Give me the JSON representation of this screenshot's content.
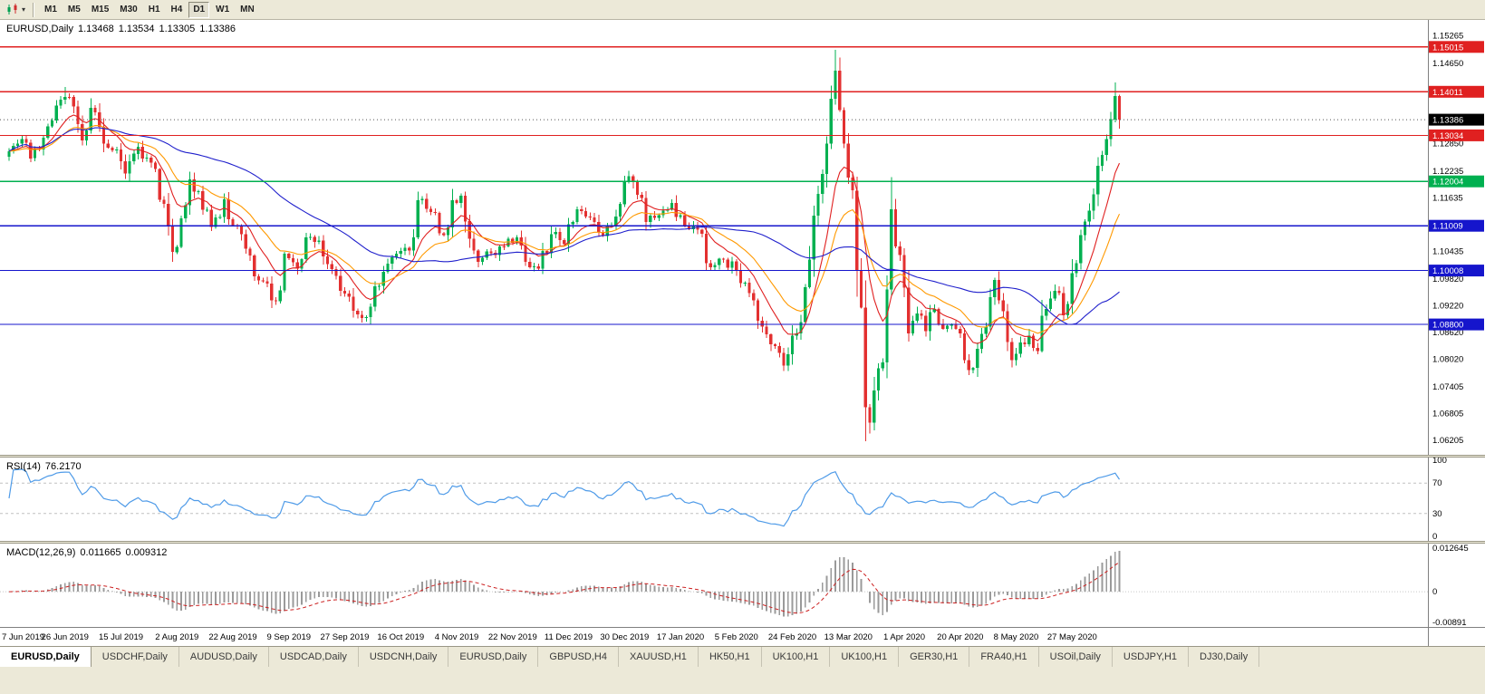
{
  "colors": {
    "up": "#00b050",
    "down": "#e33030",
    "macd_hist": "#9a9a9a",
    "macd_signal": "#cc2020",
    "badge_current": "#000000",
    "toolbar_bg": "#ece9d8",
    "panel_bg": "#ffffff"
  },
  "toolbar": {
    "dropdown_glyph": "▾",
    "timeframes": [
      {
        "label": "M1",
        "active": false
      },
      {
        "label": "M5",
        "active": false
      },
      {
        "label": "M15",
        "active": false
      },
      {
        "label": "M30",
        "active": false
      },
      {
        "label": "H1",
        "active": false
      },
      {
        "label": "H4",
        "active": false
      },
      {
        "label": "D1",
        "active": true
      },
      {
        "label": "W1",
        "active": false
      },
      {
        "label": "MN",
        "active": false
      }
    ]
  },
  "chart_data": {
    "type": "candlestick",
    "title": "EURUSD,Daily",
    "main": {
      "symbol": "EURUSD,Daily",
      "ohlc": {
        "open": "1.13468",
        "high": "1.13534",
        "low": "1.13305",
        "close": "1.13386"
      },
      "y_ticks": [
        "1.15265",
        "1.14650",
        "1.14040",
        "1.13425",
        "1.12850",
        "1.12235",
        "1.11635",
        "1.11025",
        "1.10435",
        "1.09820",
        "1.09220",
        "1.08620",
        "1.08020",
        "1.07405",
        "1.06805",
        "1.06205"
      ],
      "price_range": {
        "top": 1.1562,
        "bottom": 1.0588
      },
      "hlines": [
        {
          "price": 1.15015,
          "label": "1.15015",
          "color": "#e02020"
        },
        {
          "price": 1.14011,
          "label": "1.14011",
          "color": "#e02020"
        },
        {
          "price": 1.13034,
          "label": "1.13034",
          "color": "#e02020"
        },
        {
          "price": 1.12004,
          "label": "1.12004",
          "color": "#00b050"
        },
        {
          "price": 1.11009,
          "label": "1.11009",
          "color": "#1515cc"
        },
        {
          "price": 1.10008,
          "label": "1.10008",
          "color": "#1515cc"
        },
        {
          "price": 1.088,
          "label": "1.08800",
          "color": "#1515cc"
        }
      ],
      "current_price": {
        "value": 1.13386,
        "label": "1.13386"
      },
      "num_candles": 259,
      "seed": 42,
      "anchors": [
        [
          0,
          1.1268
        ],
        [
          3,
          1.1295
        ],
        [
          5,
          1.1252
        ],
        [
          8,
          1.1298
        ],
        [
          11,
          1.137
        ],
        [
          13,
          1.139
        ],
        [
          15,
          1.1368
        ],
        [
          17,
          1.1292
        ],
        [
          19,
          1.1365
        ],
        [
          22,
          1.1285
        ],
        [
          25,
          1.1272
        ],
        [
          27,
          1.1218
        ],
        [
          30,
          1.1278
        ],
        [
          33,
          1.1242
        ],
        [
          36,
          1.115
        ],
        [
          38,
          1.1042
        ],
        [
          40,
          1.1118
        ],
        [
          42,
          1.1205
        ],
        [
          44,
          1.1178
        ],
        [
          47,
          1.1098
        ],
        [
          50,
          1.116
        ],
        [
          52,
          1.1102
        ],
        [
          54,
          1.1082
        ],
        [
          57,
          1.0988
        ],
        [
          60,
          1.0972
        ],
        [
          62,
          1.0932
        ],
        [
          64,
          1.1038
        ],
        [
          67,
          1.1005
        ],
        [
          69,
          1.1075
        ],
        [
          72,
          1.1068
        ],
        [
          74,
          1.1015
        ],
        [
          77,
          1.0955
        ],
        [
          79,
          1.0942
        ],
        [
          81,
          1.0902
        ],
        [
          83,
          1.0896
        ],
        [
          85,
          1.0965
        ],
        [
          87,
          1.0998
        ],
        [
          90,
          1.1038
        ],
        [
          93,
          1.1045
        ],
        [
          95,
          1.1158
        ],
        [
          98,
          1.1132
        ],
        [
          101,
          1.108
        ],
        [
          103,
          1.1158
        ],
        [
          105,
          1.1168
        ],
        [
          107,
          1.1072
        ],
        [
          109,
          1.102
        ],
        [
          112,
          1.104
        ],
        [
          115,
          1.1055
        ],
        [
          118,
          1.1075
        ],
        [
          120,
          1.102
        ],
        [
          123,
          1.1005
        ],
        [
          126,
          1.1082
        ],
        [
          129,
          1.106
        ],
        [
          132,
          1.1138
        ],
        [
          135,
          1.112
        ],
        [
          138,
          1.1078
        ],
        [
          141,
          1.1122
        ],
        [
          144,
          1.1212
        ],
        [
          146,
          1.117
        ],
        [
          148,
          1.111
        ],
        [
          151,
          1.1125
        ],
        [
          154,
          1.1152
        ],
        [
          157,
          1.11
        ],
        [
          160,
          1.1092
        ],
        [
          163,
          1.1008
        ],
        [
          166,
          1.1025
        ],
        [
          169,
          1.1
        ],
        [
          172,
          1.095
        ],
        [
          175,
          1.0875
        ],
        [
          178,
          1.0832
        ],
        [
          180,
          1.0788
        ],
        [
          182,
          1.0855
        ],
        [
          184,
          1.0885
        ],
        [
          186,
          1.1025
        ],
        [
          188,
          1.1172
        ],
        [
          190,
          1.1285
        ],
        [
          192,
          1.1448
        ],
        [
          194,
          1.1285
        ],
        [
          196,
          1.118
        ],
        [
          197,
          1.1
        ],
        [
          198,
          1.0918
        ],
        [
          199,
          1.0695
        ],
        [
          200,
          1.066
        ],
        [
          201,
          1.0732
        ],
        [
          203,
          1.0795
        ],
        [
          205,
          1.1138
        ],
        [
          207,
          1.1035
        ],
        [
          209,
          1.086
        ],
        [
          211,
          1.0905
        ],
        [
          213,
          1.0865
        ],
        [
          215,
          1.0915
        ],
        [
          217,
          1.087
        ],
        [
          219,
          1.088
        ],
        [
          221,
          1.086
        ],
        [
          223,
          1.0778
        ],
        [
          225,
          1.0825
        ],
        [
          227,
          1.0875
        ],
        [
          229,
          1.098
        ],
        [
          231,
          1.091
        ],
        [
          233,
          1.08
        ],
        [
          235,
          1.084
        ],
        [
          237,
          1.0855
        ],
        [
          239,
          1.082
        ],
        [
          241,
          1.0915
        ],
        [
          243,
          1.0955
        ],
        [
          245,
          1.09
        ],
        [
          247,
          1.0995
        ],
        [
          249,
          1.108
        ],
        [
          251,
          1.1135
        ],
        [
          253,
          1.1235
        ],
        [
          255,
          1.1295
        ],
        [
          257,
          1.1392
        ],
        [
          258,
          1.13386
        ]
      ],
      "forced_extremes": [
        [
          13,
          "high",
          1.1412
        ],
        [
          192,
          "high",
          1.1495
        ],
        [
          200,
          "low",
          1.0636
        ],
        [
          257,
          "high",
          1.1422
        ]
      ],
      "ma": [
        {
          "period": 10,
          "type": "ema",
          "color": "#e02020"
        },
        {
          "period": 21,
          "type": "ema",
          "color": "#ff9900"
        },
        {
          "period": 50,
          "type": "sma",
          "color": "#2020cc"
        }
      ]
    },
    "rsi": {
      "name": "RSI(14)",
      "value": "76.2170",
      "period": 14,
      "levels": [
        100,
        70,
        30,
        0
      ],
      "color": "#4f9be8"
    },
    "macd": {
      "name": "MACD(12,26,9)",
      "value_main": "0.011665",
      "value_signal": "0.009312",
      "fast": 12,
      "slow": 26,
      "signal_period": 9,
      "y_ticks": [
        "0.012645",
        "0",
        "-0.00891"
      ]
    },
    "x_labels": [
      "7 Jun 2019",
      "26 Jun 2019",
      "15 Jul 2019",
      "2 Aug 2019",
      "22 Aug 2019",
      "9 Sep 2019",
      "27 Sep 2019",
      "16 Oct 2019",
      "4 Nov 2019",
      "22 Nov 2019",
      "11 Dec 2019",
      "30 Dec 2019",
      "17 Jan 2020",
      "5 Feb 2020",
      "24 Feb 2020",
      "13 Mar 2020",
      "1 Apr 2020",
      "20 Apr 2020",
      "8 May 2020",
      "27 May 2020"
    ]
  },
  "tabs": [
    {
      "label": "EURUSD,Daily",
      "active": true
    },
    {
      "label": "USDCHF,Daily",
      "active": false
    },
    {
      "label": "AUDUSD,Daily",
      "active": false
    },
    {
      "label": "USDCAD,Daily",
      "active": false
    },
    {
      "label": "USDCNH,Daily",
      "active": false
    },
    {
      "label": "EURUSD,Daily",
      "active": false
    },
    {
      "label": "GBPUSD,H4",
      "active": false
    },
    {
      "label": "XAUUSD,H1",
      "active": false
    },
    {
      "label": "HK50,H1",
      "active": false
    },
    {
      "label": "UK100,H1",
      "active": false
    },
    {
      "label": "UK100,H1",
      "active": false
    },
    {
      "label": "GER30,H1",
      "active": false
    },
    {
      "label": "FRA40,H1",
      "active": false
    },
    {
      "label": "USOil,Daily",
      "active": false
    },
    {
      "label": "USDJPY,H1",
      "active": false
    },
    {
      "label": "DJ30,Daily",
      "active": false
    }
  ]
}
